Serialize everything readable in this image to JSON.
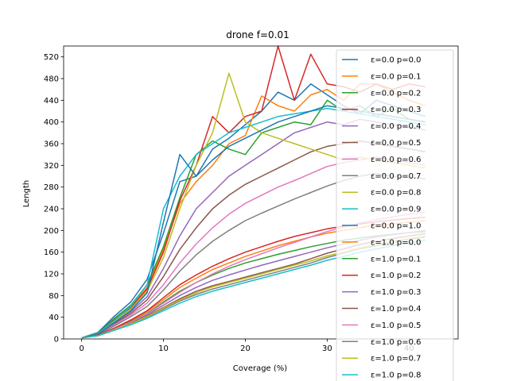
{
  "chart_data": {
    "type": "line",
    "title": "drone f=0.01",
    "xlabel": "Coverage (%)",
    "ylabel": "Length",
    "xlim": [
      -2.2,
      46
    ],
    "ylim": [
      0,
      540
    ],
    "xticks": [
      0,
      10,
      20,
      30,
      40
    ],
    "xtick_labels": [
      "0",
      "10",
      "20",
      "30",
      "40"
    ],
    "yticks": [
      0,
      40,
      80,
      120,
      160,
      200,
      240,
      280,
      320,
      360,
      400,
      440,
      480,
      520
    ],
    "ytick_labels": [
      "0",
      "40",
      "80",
      "120",
      "160",
      "200",
      "240",
      "280",
      "320",
      "360",
      "400",
      "440",
      "480",
      "520"
    ],
    "grid": false,
    "legend_position": "upper-right",
    "series": [
      {
        "name": "ε=0.0 p=0.0",
        "color": "#1f77b4",
        "x": [
          0,
          2,
          4,
          6,
          8,
          10,
          12,
          14,
          16,
          18,
          20,
          22,
          24,
          26,
          28,
          30,
          32,
          34,
          36,
          38,
          40,
          42
        ],
        "y": [
          2,
          12,
          42,
          68,
          110,
          195,
          290,
          300,
          350,
          370,
          395,
          420,
          455,
          440,
          470,
          450,
          430,
          415,
          440,
          430,
          420,
          410
        ]
      },
      {
        "name": "ε=0.0 p=0.1",
        "color": "#ff7f0e",
        "x": [
          0,
          2,
          4,
          6,
          8,
          10,
          12,
          14,
          16,
          18,
          20,
          22,
          24,
          26,
          28,
          30,
          32,
          34,
          36,
          38,
          40,
          42
        ],
        "y": [
          2,
          10,
          36,
          60,
          95,
          165,
          250,
          290,
          320,
          360,
          375,
          448,
          430,
          420,
          450,
          460,
          440,
          470,
          470,
          455,
          440,
          430
        ]
      },
      {
        "name": "ε=0.0 p=0.2",
        "color": "#2ca02c",
        "x": [
          0,
          2,
          4,
          6,
          8,
          10,
          12,
          14,
          16,
          18,
          20,
          22,
          24,
          26,
          28,
          30,
          32,
          34,
          36,
          38,
          40,
          42
        ],
        "y": [
          2,
          11,
          38,
          62,
          100,
          170,
          260,
          340,
          365,
          350,
          340,
          380,
          390,
          400,
          395,
          440,
          420,
          430,
          410,
          425,
          405,
          400
        ]
      },
      {
        "name": "ε=0.0 p=0.3",
        "color": "#d62728",
        "x": [
          0,
          2,
          4,
          6,
          8,
          10,
          12,
          14,
          16,
          18,
          20,
          22,
          24,
          26,
          28,
          30,
          32,
          34,
          36,
          38,
          40,
          42
        ],
        "y": [
          2,
          10,
          35,
          58,
          92,
          160,
          255,
          320,
          410,
          380,
          410,
          420,
          545,
          440,
          525,
          470,
          465,
          455,
          470,
          460,
          470,
          465
        ]
      },
      {
        "name": "ε=0.0 p=0.4",
        "color": "#9467bd",
        "x": [
          0,
          2,
          4,
          6,
          8,
          10,
          12,
          14,
          16,
          18,
          20,
          22,
          24,
          26,
          28,
          30,
          32,
          34,
          36,
          38,
          40,
          42
        ],
        "y": [
          2,
          9,
          30,
          50,
          78,
          130,
          190,
          240,
          270,
          300,
          320,
          340,
          360,
          380,
          390,
          400,
          395,
          405,
          400,
          395,
          390,
          385
        ]
      },
      {
        "name": "ε=0.0 p=0.5",
        "color": "#8c564b",
        "x": [
          0,
          2,
          4,
          6,
          8,
          10,
          12,
          14,
          16,
          18,
          20,
          22,
          24,
          26,
          28,
          30,
          32,
          34,
          36,
          38,
          40,
          42
        ],
        "y": [
          2,
          9,
          28,
          47,
          72,
          115,
          165,
          205,
          240,
          265,
          285,
          300,
          315,
          330,
          345,
          355,
          360,
          365,
          360,
          355,
          350,
          345
        ]
      },
      {
        "name": "ε=0.0 p=0.6",
        "color": "#e377c2",
        "x": [
          0,
          2,
          4,
          6,
          8,
          10,
          12,
          14,
          16,
          18,
          20,
          22,
          24,
          26,
          28,
          30,
          32,
          34,
          36,
          38,
          40,
          42
        ],
        "y": [
          2,
          8,
          26,
          44,
          66,
          100,
          140,
          175,
          205,
          230,
          250,
          265,
          280,
          292,
          305,
          318,
          325,
          330,
          335,
          330,
          325,
          320
        ]
      },
      {
        "name": "ε=0.0 p=0.7",
        "color": "#7f7f7f",
        "x": [
          0,
          2,
          4,
          6,
          8,
          10,
          12,
          14,
          16,
          18,
          20,
          22,
          24,
          26,
          28,
          30,
          32,
          34,
          36,
          38,
          40,
          42
        ],
        "y": [
          2,
          8,
          24,
          41,
          60,
          90,
          125,
          155,
          180,
          200,
          218,
          232,
          245,
          258,
          270,
          282,
          292,
          300,
          305,
          300,
          298,
          295
        ]
      },
      {
        "name": "ε=0.0 p=0.8",
        "color": "#bcbd22",
        "x": [
          0,
          2,
          4,
          6,
          8,
          10,
          12,
          14,
          16,
          18,
          20,
          22,
          24,
          26,
          28,
          30,
          32,
          34,
          36,
          38,
          40,
          42
        ],
        "y": [
          2,
          10,
          32,
          55,
          88,
          150,
          240,
          320,
          380,
          490,
          400,
          380,
          370,
          360,
          350,
          340,
          330,
          335,
          330,
          325,
          320,
          315
        ]
      },
      {
        "name": "ε=0.0 p=0.9",
        "color": "#17becf",
        "x": [
          0,
          2,
          4,
          6,
          8,
          10,
          12,
          14,
          16,
          18,
          20,
          22,
          24,
          26,
          28,
          30,
          32,
          34,
          36,
          38,
          40,
          42
        ],
        "y": [
          2,
          10,
          34,
          60,
          100,
          240,
          300,
          340,
          360,
          380,
          390,
          400,
          410,
          415,
          420,
          425,
          420,
          415,
          410,
          405,
          400,
          395
        ]
      },
      {
        "name": "ε=0.0 p=1.0",
        "color": "#1f77b4",
        "x": [
          0,
          2,
          4,
          6,
          8,
          10,
          12,
          14,
          16,
          18,
          20,
          22,
          24,
          26,
          28,
          30,
          32,
          34,
          36,
          38,
          40,
          42
        ],
        "y": [
          2,
          9,
          30,
          52,
          85,
          215,
          340,
          300,
          330,
          355,
          370,
          385,
          400,
          410,
          420,
          430,
          425,
          420,
          415,
          410,
          405,
          400
        ]
      },
      {
        "name": "ε=1.0 p=0.0",
        "color": "#ff7f0e",
        "x": [
          0,
          2,
          4,
          6,
          8,
          10,
          12,
          14,
          16,
          18,
          20,
          22,
          24,
          26,
          28,
          30,
          32,
          34,
          36,
          38,
          40,
          42
        ],
        "y": [
          2,
          7,
          20,
          34,
          50,
          72,
          95,
          112,
          128,
          140,
          152,
          162,
          172,
          180,
          188,
          195,
          200,
          205,
          210,
          212,
          215,
          218
        ]
      },
      {
        "name": "ε=1.0 p=0.1",
        "color": "#2ca02c",
        "x": [
          0,
          2,
          4,
          6,
          8,
          10,
          12,
          14,
          16,
          18,
          20,
          22,
          24,
          26,
          28,
          30,
          32,
          34,
          36,
          38,
          40,
          42
        ],
        "y": [
          2,
          7,
          19,
          32,
          47,
          68,
          88,
          104,
          118,
          130,
          140,
          148,
          156,
          163,
          170,
          176,
          182,
          186,
          190,
          193,
          196,
          198
        ]
      },
      {
        "name": "ε=1.0 p=0.2",
        "color": "#d62728",
        "x": [
          0,
          2,
          4,
          6,
          8,
          10,
          12,
          14,
          16,
          18,
          20,
          22,
          24,
          26,
          28,
          30,
          32,
          34,
          36,
          38,
          40,
          42
        ],
        "y": [
          2,
          7,
          20,
          35,
          52,
          76,
          100,
          118,
          134,
          148,
          160,
          170,
          180,
          189,
          196,
          203,
          208,
          212,
          216,
          219,
          222,
          224
        ]
      },
      {
        "name": "ε=1.0 p=0.3",
        "color": "#9467bd",
        "x": [
          0,
          2,
          4,
          6,
          8,
          10,
          12,
          14,
          16,
          18,
          20,
          22,
          24,
          26,
          28,
          30,
          32,
          34,
          36,
          38,
          40,
          42
        ],
        "y": [
          2,
          6,
          18,
          30,
          44,
          62,
          80,
          95,
          108,
          118,
          127,
          136,
          144,
          152,
          160,
          168,
          175,
          182,
          188,
          192,
          196,
          200
        ]
      },
      {
        "name": "ε=1.0 p=0.4",
        "color": "#8c564b",
        "x": [
          0,
          2,
          4,
          6,
          8,
          10,
          12,
          14,
          16,
          18,
          20,
          22,
          24,
          26,
          28,
          30,
          32,
          34,
          36,
          38,
          40,
          42
        ],
        "y": [
          2,
          6,
          17,
          29,
          42,
          58,
          74,
          88,
          98,
          106,
          114,
          122,
          130,
          138,
          148,
          158,
          166,
          174,
          180,
          185,
          190,
          194
        ]
      },
      {
        "name": "ε=1.0 p=0.5",
        "color": "#e377c2",
        "x": [
          0,
          2,
          4,
          6,
          8,
          10,
          12,
          14,
          16,
          18,
          20,
          22,
          24,
          26,
          28,
          30,
          32,
          34,
          36,
          38,
          40,
          42
        ],
        "y": [
          2,
          6,
          18,
          31,
          46,
          66,
          86,
          104,
          120,
          134,
          146,
          157,
          168,
          178,
          188,
          198,
          206,
          214,
          220,
          225,
          230,
          234
        ]
      },
      {
        "name": "ε=1.0 p=0.6",
        "color": "#7f7f7f",
        "x": [
          0,
          2,
          4,
          6,
          8,
          10,
          12,
          14,
          16,
          18,
          20,
          22,
          24,
          26,
          28,
          30,
          32,
          34,
          36,
          38,
          40,
          42
        ],
        "y": [
          2,
          6,
          16,
          27,
          40,
          55,
          70,
          82,
          92,
          100,
          108,
          116,
          124,
          132,
          140,
          150,
          158,
          166,
          172,
          178,
          183,
          188
        ]
      },
      {
        "name": "ε=1.0 p=0.7",
        "color": "#bcbd22",
        "x": [
          0,
          2,
          4,
          6,
          8,
          10,
          12,
          14,
          16,
          18,
          20,
          22,
          24,
          26,
          28,
          30,
          32,
          34,
          36,
          38,
          40,
          42
        ],
        "y": [
          2,
          6,
          17,
          28,
          41,
          57,
          72,
          85,
          96,
          104,
          112,
          120,
          128,
          136,
          144,
          153,
          160,
          168,
          174,
          180,
          185,
          190
        ]
      },
      {
        "name": "ε=1.0 p=0.8",
        "color": "#17becf",
        "x": [
          0,
          2,
          4,
          6,
          8,
          10,
          12,
          14,
          16,
          18,
          20,
          22,
          24,
          26,
          28,
          30,
          32,
          34,
          36,
          38,
          40,
          42
        ],
        "y": [
          2,
          6,
          16,
          26,
          38,
          52,
          66,
          78,
          88,
          96,
          104,
          112,
          120,
          128,
          136,
          145,
          152,
          160,
          166,
          172,
          177,
          182
        ]
      }
    ]
  }
}
